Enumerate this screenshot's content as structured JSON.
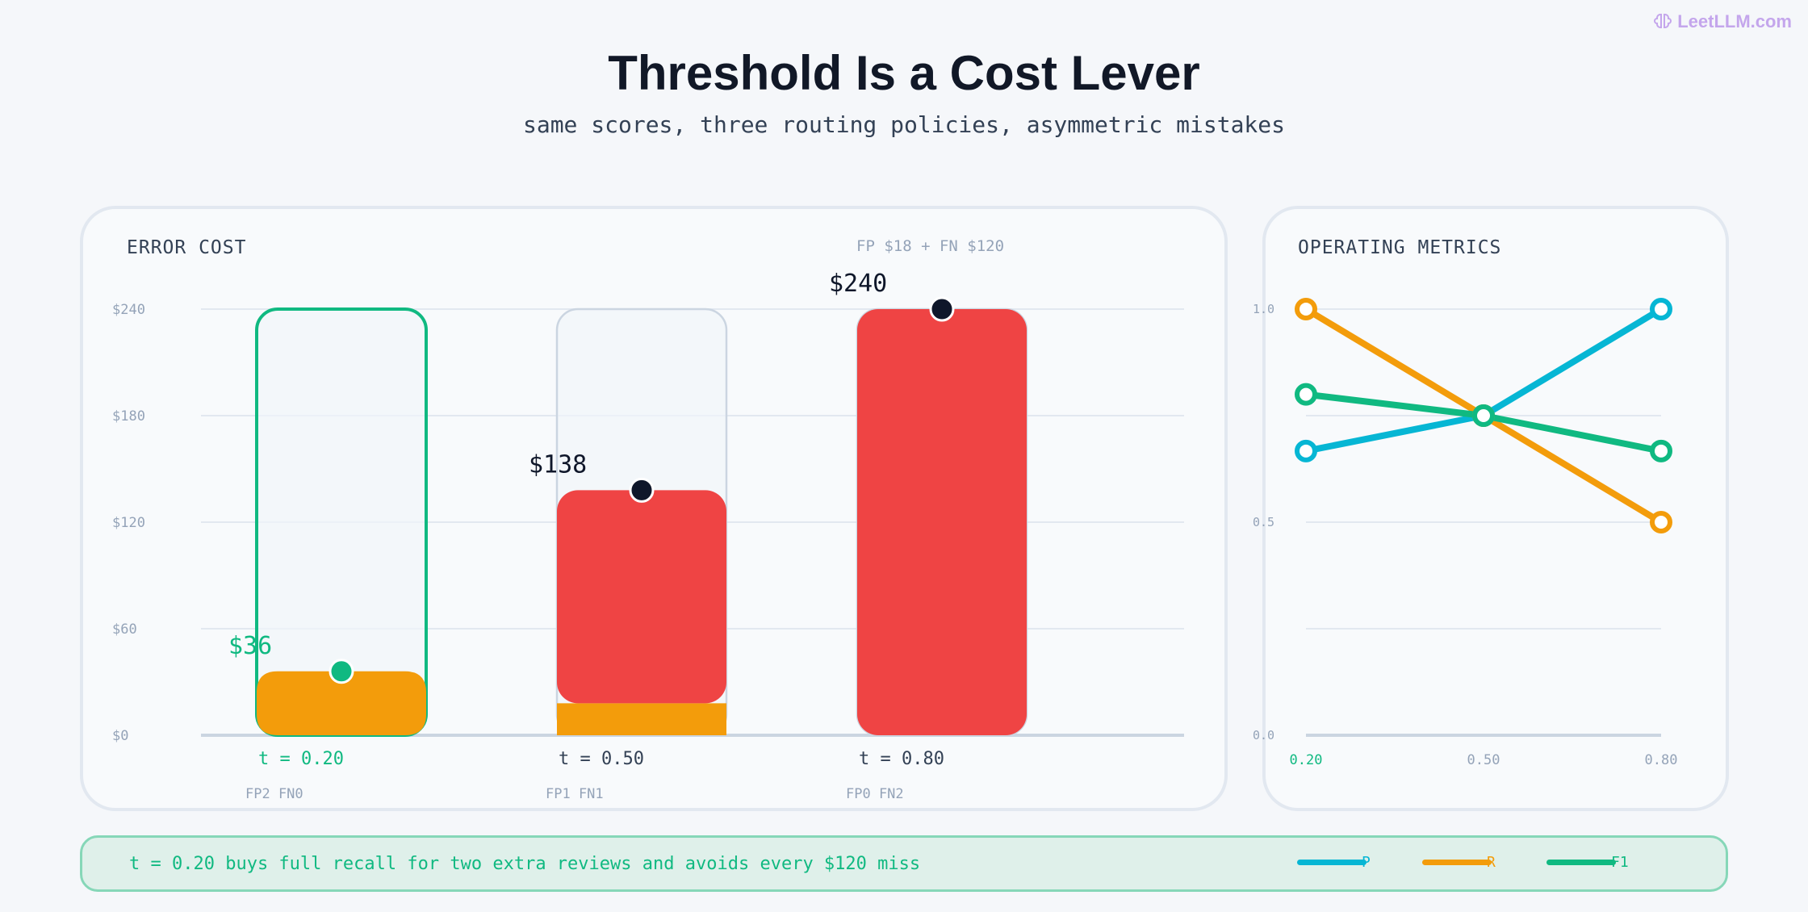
{
  "brand": "LeetLLM.com",
  "title": "Threshold Is a Cost Lever",
  "subtitle": "same scores, three routing policies, asymmetric mistakes",
  "colors": {
    "green": "#10b981",
    "orange": "#f39c0b",
    "red": "#ef4444",
    "cyan": "#06b6d4",
    "dark": "#0f172a",
    "muted": "#94a3b8"
  },
  "chart_data": [
    {
      "type": "bar",
      "title": "ERROR COST",
      "note": "FP $18 + FN $120",
      "ylim": [
        0,
        240
      ],
      "y_ticks": [
        0,
        60,
        120,
        180,
        240
      ],
      "y_tick_labels": [
        "$0",
        "$60",
        "$120",
        "$180",
        "$240"
      ],
      "categories": [
        "t = 0.20",
        "t = 0.50",
        "t = 0.80"
      ],
      "sublabels": [
        "FP2 FN0",
        "FP1 FN1",
        "FP0 FN2"
      ],
      "series": [
        {
          "name": "FP",
          "values": [
            36,
            18,
            0
          ]
        },
        {
          "name": "FN",
          "values": [
            0,
            120,
            240
          ]
        }
      ],
      "totals": [
        36,
        138,
        240
      ],
      "total_labels": [
        "$36",
        "$138",
        "$240"
      ],
      "highlight": "t = 0.20"
    },
    {
      "type": "line",
      "title": "OPERATING METRICS",
      "x": [
        0.2,
        0.5,
        0.8
      ],
      "x_tick_labels": [
        "0.20",
        "0.50",
        "0.80"
      ],
      "ylim": [
        0,
        1
      ],
      "y_ticks": [
        0,
        0.5,
        1.0
      ],
      "y_tick_labels": [
        "0.0",
        "0.5",
        "1.0"
      ],
      "series": [
        {
          "name": "P",
          "color": "#06b6d4",
          "values": [
            0.667,
            0.75,
            1.0
          ]
        },
        {
          "name": "R",
          "color": "#f39c0b",
          "values": [
            1.0,
            0.75,
            0.5
          ]
        },
        {
          "name": "F1",
          "color": "#10b981",
          "values": [
            0.8,
            0.75,
            0.667
          ]
        }
      ]
    }
  ],
  "footer": {
    "text": "t = 0.20 buys full recall for two extra reviews and avoids every $120 miss"
  }
}
